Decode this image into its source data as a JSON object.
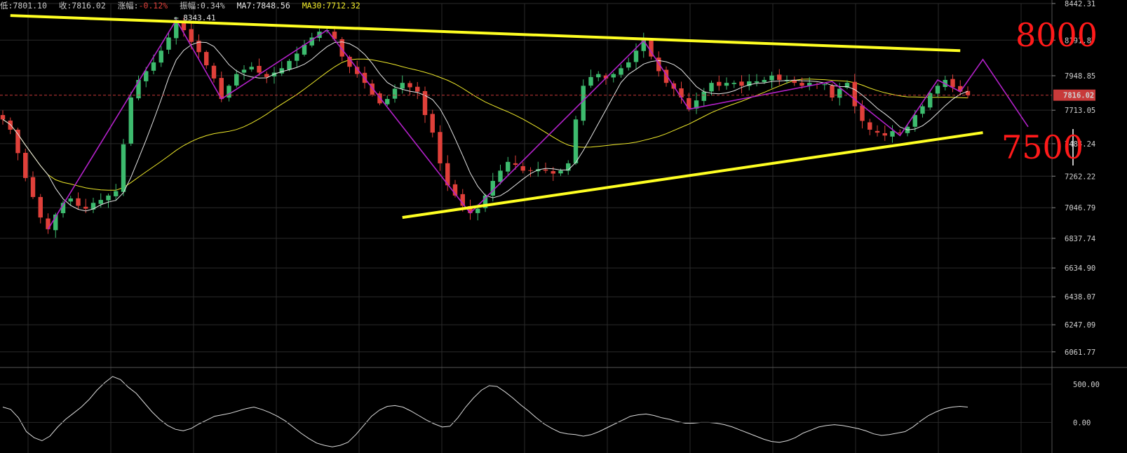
{
  "header": {
    "low_label": "低:",
    "low_value": "7801.10",
    "close_label": "收:",
    "close_value": "7816.02",
    "change_label": "涨幅:",
    "change_value": "-0.12%",
    "amplitude_label": "振幅:",
    "amplitude_value": "0.34%",
    "ma7_label": "MA7:",
    "ma7_value": "7848.56",
    "ma30_label": "MA30:",
    "ma30_value": "7712.32"
  },
  "colors": {
    "background": "#000000",
    "grid": "#2a2a2a",
    "up_candle": "#3dbb6e",
    "down_candle": "#e0403a",
    "ma7": "#e6e6e6",
    "ma30": "#f0ea2a",
    "trendline": "#ffff22",
    "wave_annotation": "#b321c9",
    "price_tag": "#c83a3a",
    "big_label": "#ff1a1a"
  },
  "chart_data": {
    "type": "candlestick",
    "y_axis": {
      "ticks": [
        "8442.31",
        "8191.87",
        "7948.85",
        "7713.05",
        "7484.24",
        "7262.22",
        "7046.79",
        "6837.74",
        "6634.90",
        "6438.07",
        "6247.09",
        "6061.77"
      ],
      "range": [
        5960,
        8442.31
      ]
    },
    "current_price": "7816.02",
    "peak_annotation": "← 8343.41",
    "series": [
      {
        "name": "MA7"
      },
      {
        "name": "MA30"
      }
    ],
    "close_path": [
      7650,
      7580,
      7420,
      7250,
      7120,
      6980,
      6900,
      7000,
      7080,
      7110,
      7060,
      7040,
      7080,
      7100,
      7130,
      7160,
      7480,
      7800,
      7920,
      7980,
      8040,
      8120,
      8210,
      8330,
      8260,
      8180,
      8110,
      8020,
      7930,
      7790,
      7880,
      7960,
      7990,
      8010,
      7970,
      7940,
      7970,
      8000,
      8050,
      8100,
      8160,
      8210,
      8250,
      8260,
      8200,
      8080,
      8010,
      7960,
      7900,
      7820,
      7760,
      7790,
      7860,
      7900,
      7870,
      7840,
      7680,
      7560,
      7350,
      7200,
      7130,
      7060,
      7010,
      7040,
      7130,
      7230,
      7300,
      7360,
      7340,
      7300,
      7300,
      7310,
      7300,
      7280,
      7300,
      7350,
      7650,
      7880,
      7940,
      7960,
      7930,
      7960,
      8000,
      8040,
      8120,
      8190,
      8080,
      7980,
      7900,
      7860,
      7800,
      7720,
      7780,
      7840,
      7900,
      7880,
      7900,
      7900,
      7880,
      7910,
      7910,
      7920,
      7950,
      7920,
      7920,
      7900,
      7880,
      7900,
      7890,
      7890,
      7800,
      7860,
      7900,
      7740,
      7640,
      7580,
      7560,
      7540,
      7570,
      7560,
      7600,
      7680,
      7740,
      7830,
      7880,
      7920,
      7870,
      7840,
      7816
    ],
    "ma_note": "ma7 and ma30 are computed from close_path",
    "forecast_labels": {
      "upper": "8000",
      "lower": "7500"
    },
    "oscillator": {
      "ticks": [
        "500.00",
        "0.00"
      ],
      "range": [
        -400,
        700
      ],
      "values": [
        200,
        170,
        60,
        -120,
        -200,
        -240,
        -180,
        -60,
        40,
        120,
        200,
        300,
        420,
        520,
        600,
        560,
        460,
        380,
        260,
        140,
        40,
        -40,
        -90,
        -110,
        -80,
        -20,
        30,
        80,
        100,
        120,
        150,
        180,
        200,
        170,
        130,
        80,
        20,
        -60,
        -140,
        -210,
        -270,
        -300,
        -320,
        -300,
        -260,
        -160,
        -40,
        80,
        160,
        210,
        220,
        200,
        150,
        90,
        30,
        -20,
        -60,
        -50,
        60,
        200,
        320,
        420,
        480,
        470,
        400,
        320,
        230,
        150,
        60,
        -20,
        -80,
        -130,
        -150,
        -160,
        -180,
        -160,
        -120,
        -70,
        -20,
        30,
        80,
        100,
        110,
        90,
        60,
        40,
        10,
        -10,
        -10,
        0,
        0,
        -10,
        -30,
        -60,
        -100,
        -140,
        -180,
        -220,
        -250,
        -260,
        -240,
        -200,
        -140,
        -100,
        -60,
        -40,
        -30,
        -40,
        -60,
        -80,
        -110,
        -150,
        -170,
        -160,
        -140,
        -120,
        -60,
        20,
        90,
        140,
        180,
        200,
        210,
        200
      ]
    },
    "trendlines": [
      {
        "from": [
          1,
          8360
        ],
        "to": [
          127,
          8120
        ]
      },
      {
        "from": [
          53,
          6980
        ],
        "to": [
          130,
          7560
        ]
      }
    ]
  }
}
